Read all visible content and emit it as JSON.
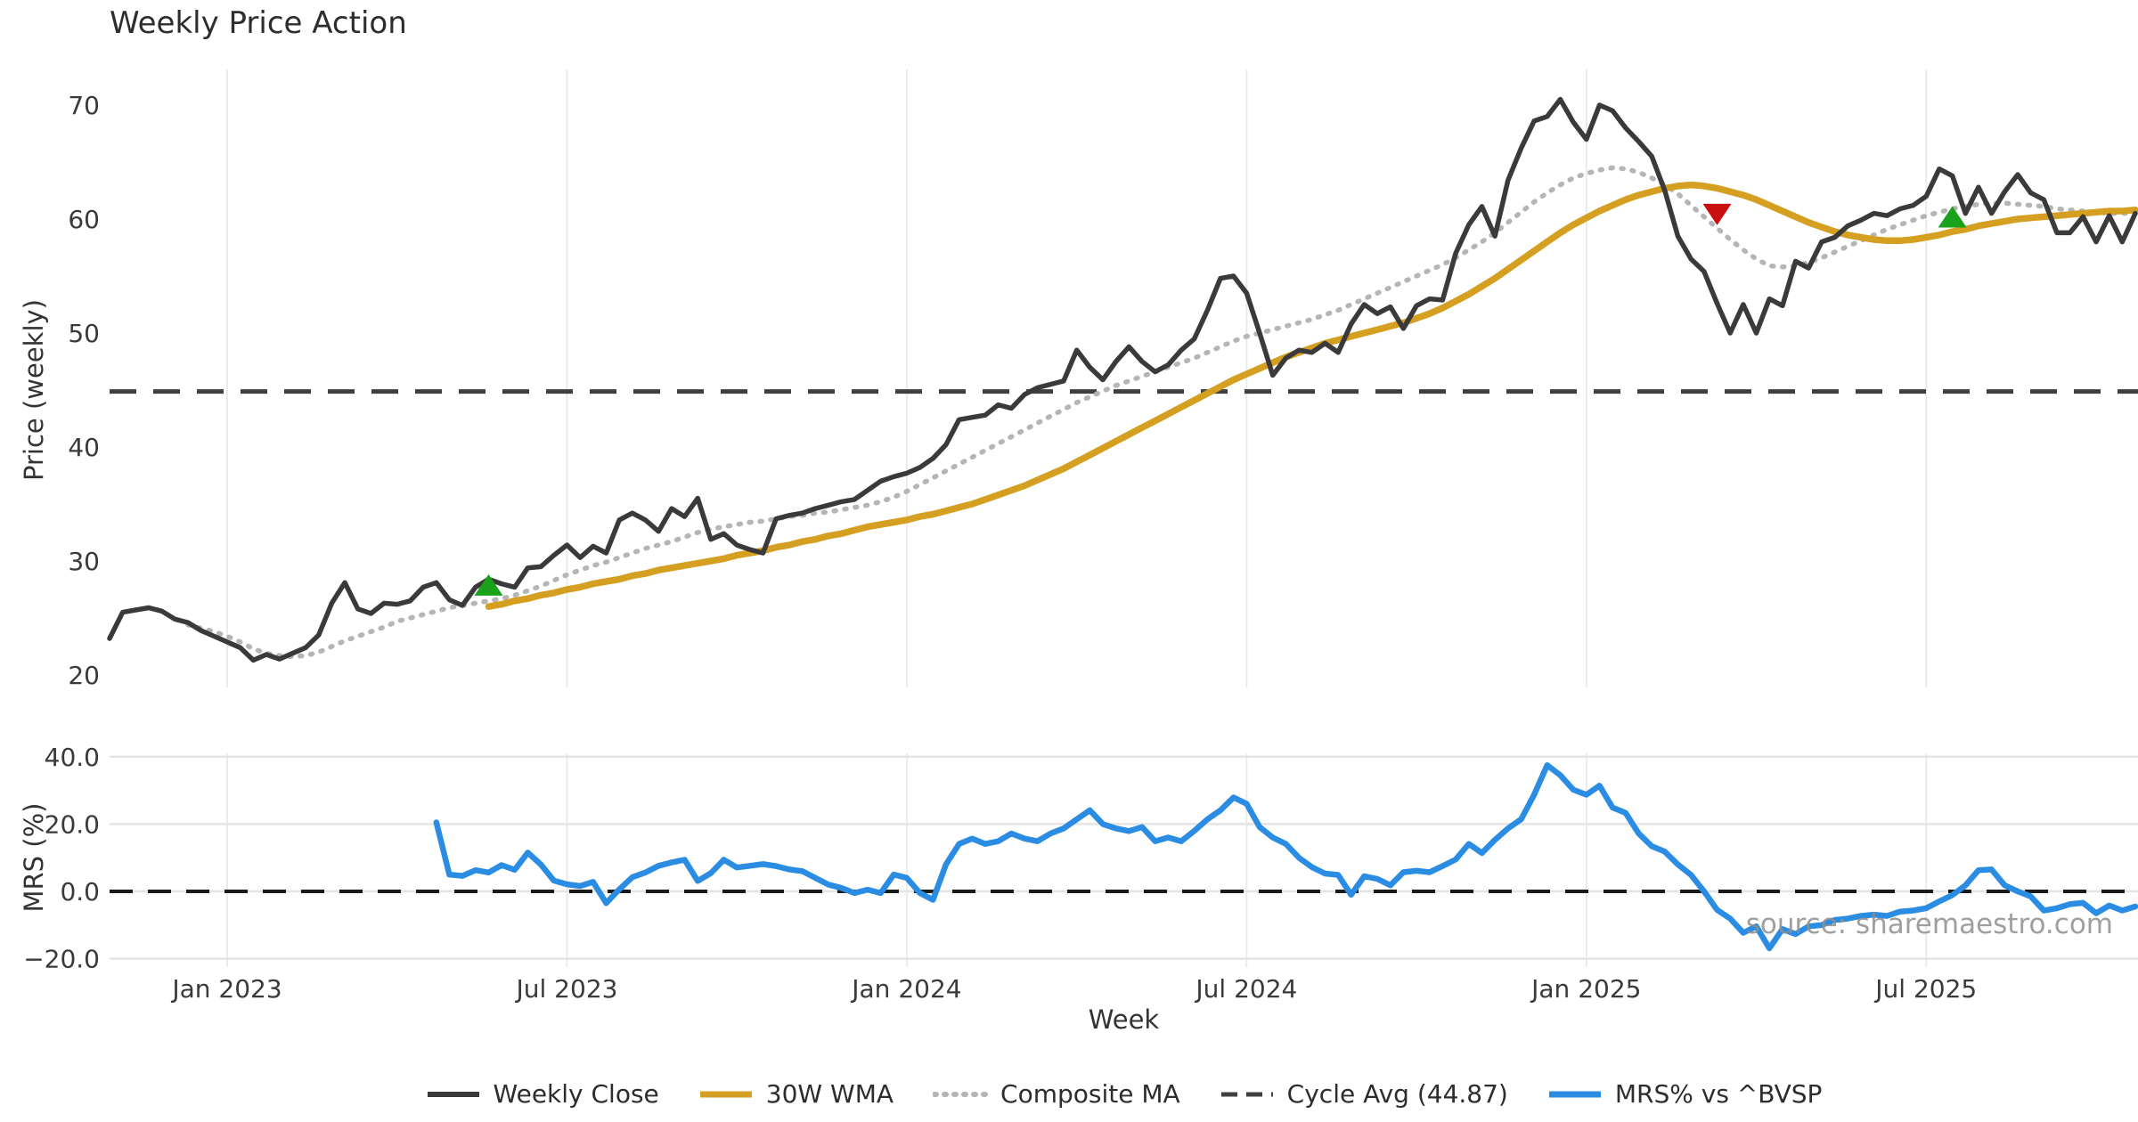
{
  "title": "Weekly Price Action",
  "watermark": "source: sharemaestro.com",
  "xlabel": "Week",
  "colors": {
    "price": "#3a3a3a",
    "wma": "#d5a021",
    "composite": "#b5b5b5",
    "cycle": "#3f3f3f",
    "mrs": "#2a8ce2",
    "buy": "#1aa21a",
    "sell": "#c90f0f",
    "grid": "#ebebeb",
    "hgrid": "#e4e4e4",
    "zero": "#1a1a1a",
    "tick_text": "#3a3a3a"
  },
  "legend": {
    "items": [
      {
        "label": "Weekly Close",
        "style": "solid",
        "color_key": "price",
        "width": 6
      },
      {
        "label": "30W WMA",
        "style": "solid",
        "color_key": "wma",
        "width": 7
      },
      {
        "label": "Composite MA",
        "style": "dotted",
        "color_key": "composite",
        "width": 6
      },
      {
        "label": "Cycle Avg (44.87)",
        "style": "dashed",
        "color_key": "cycle",
        "width": 5
      },
      {
        "label": "MRS% vs ^BVSP",
        "style": "solid",
        "color_key": "mrs",
        "width": 7
      }
    ]
  },
  "chart_data": {
    "type": "line",
    "title": "Weekly Price Action",
    "x_unit": "weekly",
    "start_date": "2022-10-31",
    "weeks_total": 156,
    "xlabel": "Week",
    "grid": true,
    "legend_position": "bottom-center",
    "xticks": [
      {
        "label": "Jan 2023",
        "week": 9
      },
      {
        "label": "Jul 2023",
        "week": 35
      },
      {
        "label": "Jan 2024",
        "week": 61
      },
      {
        "label": "Jul 2024",
        "week": 87
      },
      {
        "label": "Jan 2025",
        "week": 113
      },
      {
        "label": "Jul 2025",
        "week": 139
      }
    ],
    "price_axis": {
      "label": "Price (weekly)",
      "ticks": [
        70,
        60,
        50,
        40,
        30,
        20
      ],
      "ylim": [
        19.5,
        72.5
      ]
    },
    "mrs_axis": {
      "label": "MRS (%)",
      "ticks": [
        {
          "label": "40.0",
          "value": 40
        },
        {
          "label": "20.0",
          "value": 20
        },
        {
          "label": "0.0",
          "value": 0
        },
        {
          "label": "−20.0",
          "value": -20
        }
      ],
      "ylim": [
        -22.5,
        41.5
      ]
    },
    "cycle_avg": 44.87,
    "zero_line": 0,
    "series": [
      {
        "name": "Weekly Close",
        "panel": "price",
        "start_week": 0,
        "values": [
          23.2,
          25.5,
          25.7,
          25.9,
          25.6,
          24.9,
          24.6,
          23.9,
          23.4,
          22.9,
          22.4,
          21.3,
          21.8,
          21.4,
          21.9,
          22.4,
          23.5,
          26.3,
          28.1,
          25.8,
          25.4,
          26.3,
          26.2,
          26.5,
          27.7,
          28.1,
          26.6,
          26.1,
          27.7,
          28.4,
          28.0,
          27.7,
          29.4,
          29.5,
          30.5,
          31.4,
          30.3,
          31.3,
          30.7,
          33.6,
          34.2,
          33.6,
          32.6,
          34.6,
          33.9,
          35.5,
          31.9,
          32.4,
          31.4,
          31.0,
          30.7,
          33.7,
          34.0,
          34.2,
          34.6,
          34.9,
          35.2,
          35.4,
          36.2,
          37.0,
          37.4,
          37.7,
          38.2,
          39.0,
          40.2,
          42.4,
          42.6,
          42.8,
          43.7,
          43.4,
          44.6,
          45.2,
          45.5,
          45.8,
          48.5,
          47.0,
          45.9,
          47.5,
          48.8,
          47.5,
          46.6,
          47.2,
          48.5,
          49.5,
          52.0,
          54.8,
          55.0,
          53.5,
          50.0,
          46.3,
          47.8,
          48.5,
          48.3,
          49.1,
          48.3,
          50.8,
          52.5,
          51.7,
          52.3,
          50.4,
          52.4,
          53.0,
          52.9,
          57.0,
          59.5,
          61.1,
          58.5,
          63.4,
          66.2,
          68.6,
          69.0,
          70.5,
          68.5,
          67.0,
          70.0,
          69.5,
          68.0,
          66.8,
          65.5,
          62.5,
          58.5,
          56.5,
          55.4,
          52.6,
          50.0,
          52.5,
          50.0,
          53.0,
          52.4,
          56.3,
          55.7,
          58.0,
          58.4,
          59.4,
          59.9,
          60.5,
          60.3,
          60.9,
          61.2,
          62.0,
          64.4,
          63.8,
          60.5,
          62.8,
          60.5,
          62.4,
          63.9,
          62.3,
          61.7,
          58.8,
          58.8,
          60.2,
          58.0,
          60.3,
          58.0,
          60.5
        ]
      },
      {
        "name": "30W WMA",
        "panel": "price",
        "start_week": 29,
        "values": [
          26.0,
          26.2,
          26.5,
          26.7,
          27.0,
          27.2,
          27.5,
          27.7,
          28.0,
          28.2,
          28.4,
          28.7,
          28.9,
          29.2,
          29.4,
          29.6,
          29.8,
          30.0,
          30.2,
          30.5,
          30.7,
          30.9,
          31.2,
          31.4,
          31.7,
          31.9,
          32.2,
          32.4,
          32.7,
          33.0,
          33.2,
          33.4,
          33.6,
          33.9,
          34.1,
          34.4,
          34.7,
          35.0,
          35.4,
          35.8,
          36.2,
          36.6,
          37.1,
          37.6,
          38.1,
          38.7,
          39.3,
          39.9,
          40.5,
          41.1,
          41.7,
          42.3,
          42.9,
          43.5,
          44.1,
          44.7,
          45.3,
          45.9,
          46.4,
          46.9,
          47.4,
          47.9,
          48.3,
          48.7,
          49.1,
          49.4,
          49.7,
          50.0,
          50.3,
          50.6,
          50.9,
          51.3,
          51.7,
          52.2,
          52.8,
          53.4,
          54.1,
          54.8,
          55.6,
          56.4,
          57.2,
          58.0,
          58.8,
          59.5,
          60.1,
          60.7,
          61.2,
          61.7,
          62.1,
          62.4,
          62.7,
          62.9,
          63.0,
          62.9,
          62.7,
          62.4,
          62.1,
          61.7,
          61.2,
          60.7,
          60.2,
          59.7,
          59.3,
          58.9,
          58.6,
          58.4,
          58.2,
          58.1,
          58.1,
          58.2,
          58.4,
          58.6,
          58.9,
          59.1,
          59.4,
          59.6,
          59.8,
          60.0,
          60.1,
          60.2,
          60.3,
          60.4,
          60.5,
          60.6,
          60.7,
          60.7,
          60.8
        ]
      },
      {
        "name": "Composite MA",
        "panel": "price",
        "start_week": 6,
        "values": [
          24.4,
          24.1,
          23.8,
          23.4,
          22.9,
          22.3,
          21.9,
          21.7,
          21.6,
          21.7,
          22.0,
          22.5,
          23.0,
          23.4,
          23.8,
          24.2,
          24.7,
          25.0,
          25.3,
          25.6,
          25.9,
          26.1,
          26.3,
          26.5,
          26.7,
          27.0,
          27.4,
          27.8,
          28.3,
          28.8,
          29.2,
          29.6,
          29.9,
          30.3,
          30.7,
          31.1,
          31.4,
          31.7,
          32.1,
          32.5,
          32.8,
          33.0,
          33.2,
          33.4,
          33.5,
          33.7,
          33.9,
          34.0,
          34.2,
          34.3,
          34.5,
          34.7,
          34.9,
          35.2,
          35.6,
          36.1,
          36.7,
          37.3,
          37.9,
          38.5,
          39.1,
          39.7,
          40.3,
          40.9,
          41.5,
          42.1,
          42.7,
          43.3,
          43.9,
          44.4,
          44.9,
          45.4,
          45.8,
          46.2,
          46.6,
          47.0,
          47.4,
          47.8,
          48.3,
          48.8,
          49.3,
          49.7,
          50.0,
          50.3,
          50.6,
          50.9,
          51.2,
          51.6,
          52.0,
          52.5,
          53.0,
          53.5,
          54.0,
          54.5,
          55.0,
          55.5,
          56.0,
          56.6,
          57.3,
          58.0,
          58.8,
          59.7,
          60.6,
          61.5,
          62.3,
          63.0,
          63.6,
          64.0,
          64.3,
          64.5,
          64.4,
          64.1,
          63.6,
          63.0,
          62.2,
          61.2,
          60.2,
          59.2,
          58.2,
          57.3,
          56.5,
          55.9,
          55.8,
          55.9,
          56.2,
          56.6,
          57.1,
          57.6,
          58.1,
          58.6,
          59.1,
          59.5,
          59.9,
          60.3,
          60.6,
          60.9,
          61.1,
          61.3,
          61.4,
          61.4,
          61.3,
          61.2,
          61.1,
          60.9,
          60.8,
          60.7,
          60.6,
          60.5,
          60.5,
          60.5
        ]
      },
      {
        "name": "MRS% vs ^BVSP",
        "panel": "mrs",
        "start_week": 25,
        "values": [
          20.5,
          5.0,
          4.6,
          6.3,
          5.6,
          7.8,
          6.4,
          11.5,
          8.0,
          3.2,
          2.1,
          1.6,
          2.8,
          -3.5,
          0.6,
          4.2,
          5.6,
          7.6,
          8.6,
          9.4,
          3.1,
          5.4,
          9.4,
          7.1,
          7.6,
          8.1,
          7.5,
          6.5,
          6.0,
          4.0,
          2.0,
          1.0,
          -0.5,
          0.5,
          -0.5,
          5.0,
          4.0,
          -0.5,
          -2.5,
          8.0,
          14.1,
          15.7,
          14.1,
          14.9,
          17.2,
          15.7,
          14.9,
          17.2,
          18.7,
          21.4,
          24.1,
          20.0,
          18.7,
          17.9,
          19.1,
          14.9,
          16.0,
          14.9,
          18.0,
          21.4,
          24.1,
          27.9,
          26.0,
          19.1,
          16.0,
          14.1,
          10.0,
          7.2,
          5.3,
          4.9,
          -1.0,
          4.5,
          3.7,
          1.8,
          5.7,
          6.1,
          5.7,
          7.5,
          9.5,
          14.1,
          11.4,
          15.3,
          18.7,
          21.4,
          28.7,
          37.5,
          34.5,
          30.2,
          28.7,
          31.4,
          24.9,
          23.3,
          17.2,
          13.4,
          11.8,
          8.0,
          4.9,
          0.0,
          -5.5,
          -8.1,
          -12.3,
          -10.4,
          -16.9,
          -11.2,
          -12.7,
          -10.4,
          -10.0,
          -8.5,
          -8.1,
          -7.3,
          -6.9,
          -7.3,
          -6.0,
          -5.7,
          -5.0,
          -3.0,
          -1.1,
          1.8,
          6.3,
          6.5,
          1.8,
          0.0,
          -1.5,
          -5.7,
          -5.0,
          -3.8,
          -3.4,
          -6.5,
          -4.2,
          -5.7,
          -4.5
        ]
      }
    ],
    "markers": [
      {
        "type": "buy",
        "week": 29,
        "value": 27.9
      },
      {
        "type": "sell",
        "week": 123,
        "value": 60.4
      },
      {
        "type": "buy",
        "week": 141,
        "value": 60.2
      }
    ]
  }
}
